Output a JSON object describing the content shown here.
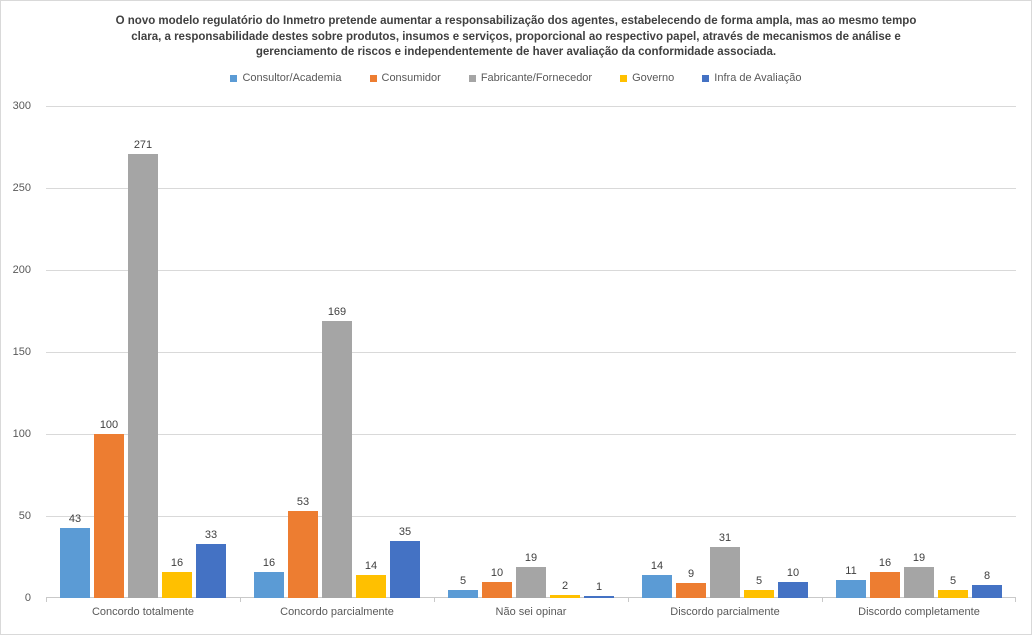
{
  "chart_data": {
    "type": "bar",
    "title": "O novo modelo regulatório do Inmetro pretende aumentar a responsabilização dos agentes, estabelecendo de forma ampla, mas ao mesmo tempo clara, a responsabilidade destes sobre produtos, insumos e serviços, proporcional ao respectivo papel, através de mecanismos de análise e gerenciamento de riscos e independentemente de haver avaliação da conformidade associada.",
    "title_lines": [
      "O novo modelo regulatório do Inmetro pretende aumentar a responsabilização dos agentes, estabelecendo de forma ampla, mas ao mesmo tempo",
      "clara, a responsabilidade destes sobre produtos, insumos e serviços, proporcional ao respectivo papel, através de mecanismos de análise e",
      "gerenciamento de riscos e independentemente de haver avaliação da conformidade associada."
    ],
    "categories": [
      "Concordo totalmente",
      "Concordo parcialmente",
      "Não sei opinar",
      "Discordo parcialmente",
      "Discordo completamente"
    ],
    "series": [
      {
        "name": "Consultor/Academia",
        "color": "#5B9BD5",
        "values": [
          43,
          16,
          5,
          14,
          11
        ]
      },
      {
        "name": "Consumidor",
        "color": "#ED7D31",
        "values": [
          100,
          53,
          10,
          9,
          16
        ]
      },
      {
        "name": "Fabricante/Fornecedor",
        "color": "#A5A5A5",
        "values": [
          271,
          169,
          19,
          31,
          19
        ]
      },
      {
        "name": "Governo",
        "color": "#FFC000",
        "values": [
          16,
          14,
          2,
          5,
          5
        ]
      },
      {
        "name": "Infra de Avaliação",
        "color": "#4472C4",
        "values": [
          33,
          35,
          1,
          10,
          8
        ]
      }
    ],
    "ylim": [
      0,
      300
    ],
    "yticks": [
      0,
      50,
      100,
      150,
      200,
      250,
      300
    ],
    "grid": "horizontal",
    "legend_position": "top",
    "data_labels": true,
    "xlabel": "",
    "ylabel": ""
  },
  "styles": {
    "background": "#FFFFFF",
    "frame_border_color": "#D9D9D9",
    "gridline_color": "#D9D9D9",
    "axis_line_color": "#C9C9C9",
    "axis_label_color": "#595959",
    "data_label_color": "#404040",
    "title_color": "#404040"
  }
}
